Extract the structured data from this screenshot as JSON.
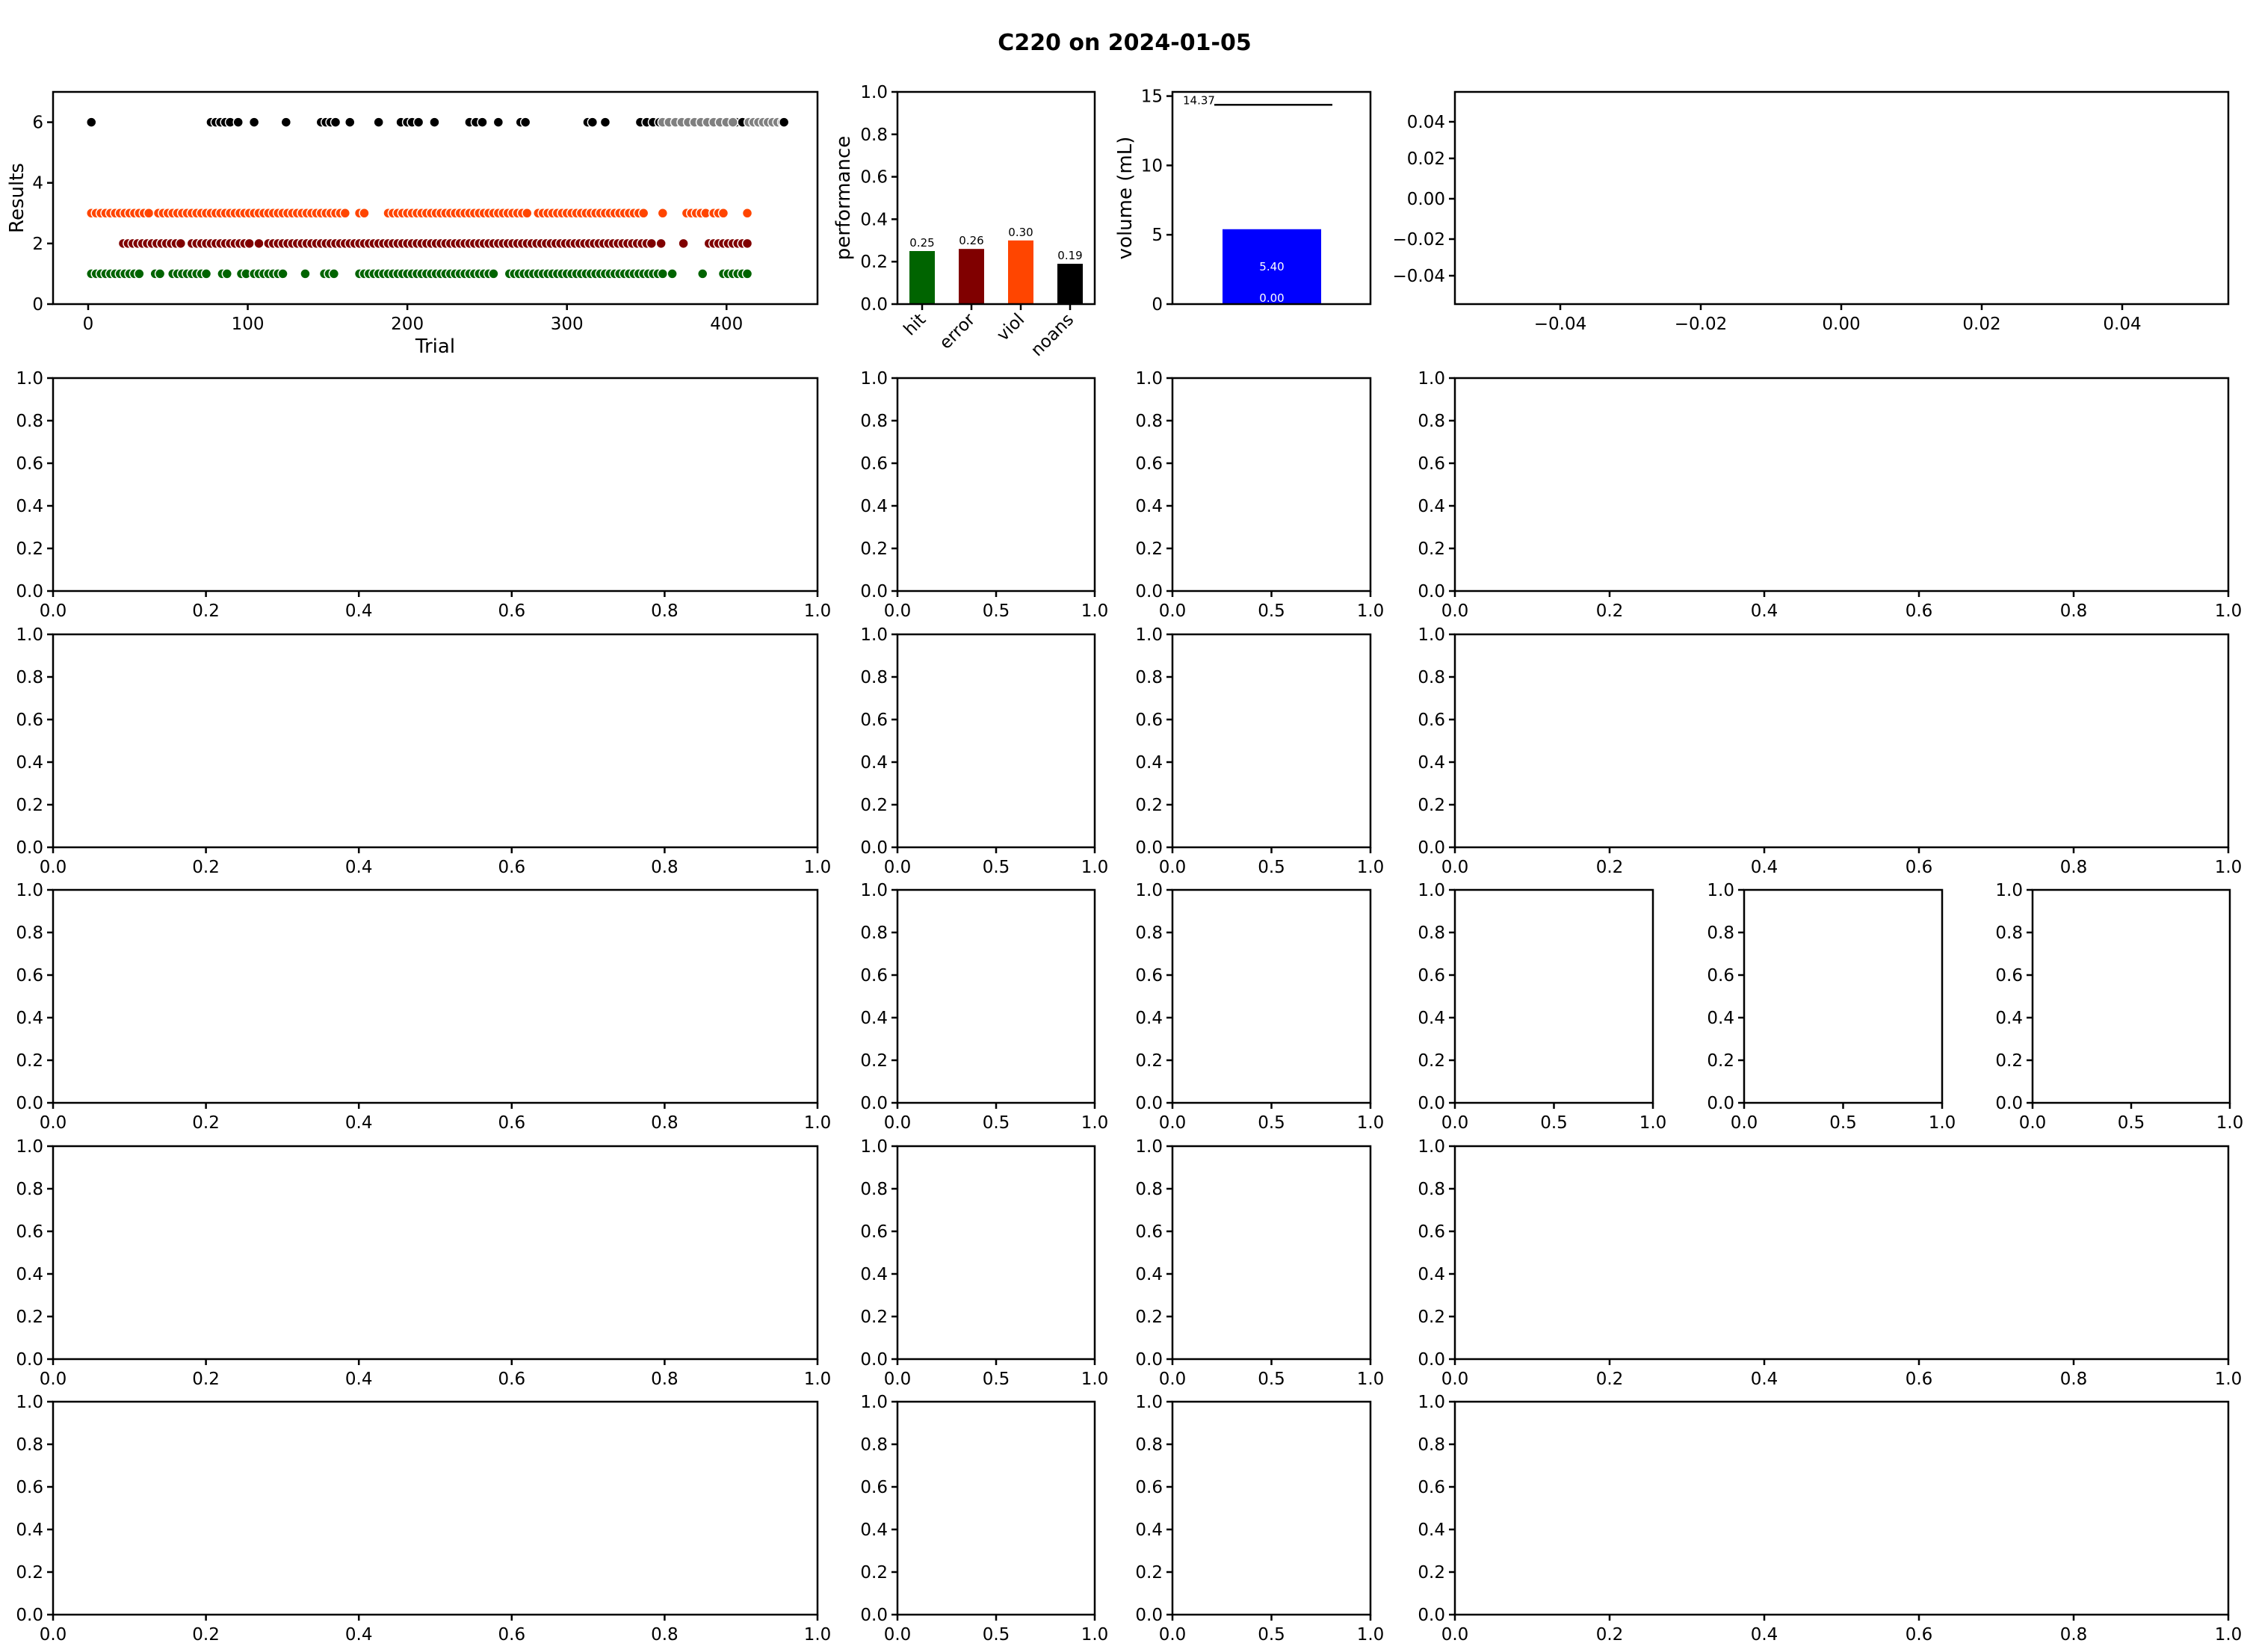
{
  "title": "C220 on 2024-01-05",
  "colors": {
    "hit": "#006400",
    "error": "#800000",
    "viol": "#ff4500",
    "noans": "#000000",
    "noans_gray": "#808080",
    "volume_bar": "#0000ff"
  },
  "chart_data": [
    {
      "id": "results",
      "type": "scatter",
      "xlabel": "Trial",
      "ylabel": "Results",
      "xlim": [
        -22,
        457
      ],
      "ylim": [
        0,
        7
      ],
      "xticks": [
        0,
        100,
        200,
        300,
        400
      ],
      "yticks": [
        0,
        2,
        4,
        6
      ],
      "grid": false,
      "series": [
        {
          "y": 6,
          "color": "#000000",
          "x": [
            2,
            77,
            80,
            83,
            86,
            89,
            94,
            104,
            124,
            146,
            149,
            152,
            155,
            164,
            182,
            196,
            200,
            203,
            207,
            217,
            239,
            243,
            247,
            257,
            271,
            274,
            313,
            316,
            324,
            346,
            350,
            354,
            358,
            362,
            366,
            370,
            374,
            378,
            382,
            386,
            390,
            394,
            398,
            402,
            406,
            410
          ]
        },
        {
          "y": 6,
          "color": "#808080",
          "x": [
            360,
            364,
            368,
            372,
            376,
            380,
            384,
            388,
            392,
            396,
            400,
            404,
            414,
            417,
            420,
            423,
            426,
            429,
            432,
            435
          ]
        },
        {
          "y": 6,
          "color": "#000000",
          "x": [
            436
          ]
        },
        {
          "y": 3,
          "color": "#ff4500",
          "x": [
            2,
            5,
            8,
            11,
            14,
            17,
            20,
            23,
            26,
            29,
            32,
            35,
            38,
            44,
            47,
            50,
            53,
            56,
            59,
            62,
            65,
            68,
            71,
            74,
            77,
            80,
            83,
            86,
            89,
            92,
            95,
            98,
            101,
            104,
            107,
            110,
            113,
            116,
            119,
            122,
            125,
            128,
            131,
            134,
            137,
            140,
            143,
            146,
            149,
            152,
            155,
            158,
            161,
            170,
            173,
            188,
            191,
            194,
            197,
            200,
            203,
            206,
            209,
            212,
            215,
            218,
            221,
            224,
            227,
            230,
            233,
            236,
            239,
            242,
            245,
            248,
            251,
            254,
            257,
            260,
            263,
            266,
            269,
            272,
            275,
            282,
            285,
            288,
            291,
            294,
            297,
            300,
            303,
            306,
            309,
            312,
            315,
            318,
            321,
            324,
            327,
            330,
            333,
            336,
            339,
            342,
            345,
            348,
            360,
            375,
            378,
            381,
            384,
            387,
            392,
            395,
            398,
            413
          ]
        },
        {
          "y": 2,
          "color": "#800000",
          "x": [
            22,
            25,
            28,
            31,
            34,
            37,
            40,
            43,
            46,
            49,
            52,
            55,
            58,
            65,
            68,
            71,
            74,
            77,
            80,
            83,
            86,
            89,
            92,
            95,
            98,
            101,
            107,
            113,
            116,
            119,
            122,
            125,
            128,
            131,
            134,
            137,
            140,
            143,
            146,
            149,
            152,
            155,
            158,
            161,
            164,
            167,
            170,
            173,
            176,
            179,
            182,
            185,
            188,
            191,
            194,
            197,
            200,
            203,
            206,
            209,
            212,
            215,
            218,
            221,
            224,
            227,
            230,
            233,
            236,
            239,
            242,
            245,
            248,
            251,
            254,
            257,
            260,
            263,
            266,
            269,
            272,
            275,
            278,
            281,
            284,
            287,
            290,
            293,
            296,
            299,
            302,
            305,
            308,
            311,
            314,
            317,
            320,
            323,
            326,
            329,
            332,
            335,
            338,
            341,
            344,
            347,
            350,
            353,
            359,
            373,
            389,
            392,
            395,
            398,
            401,
            404,
            407,
            410,
            413
          ]
        },
        {
          "y": 1,
          "color": "#006400",
          "x": [
            2,
            5,
            8,
            11,
            14,
            17,
            20,
            23,
            26,
            29,
            32,
            42,
            45,
            53,
            56,
            59,
            62,
            65,
            68,
            71,
            74,
            84,
            87,
            96,
            99,
            104,
            107,
            110,
            113,
            116,
            119,
            122,
            136,
            148,
            151,
            154,
            170,
            173,
            176,
            179,
            182,
            185,
            188,
            191,
            194,
            197,
            200,
            203,
            206,
            209,
            212,
            215,
            218,
            221,
            224,
            227,
            230,
            233,
            236,
            239,
            242,
            245,
            248,
            251,
            254,
            264,
            267,
            270,
            273,
            276,
            279,
            282,
            285,
            288,
            291,
            294,
            297,
            300,
            303,
            306,
            309,
            312,
            315,
            318,
            321,
            324,
            327,
            330,
            333,
            336,
            339,
            342,
            345,
            348,
            351,
            354,
            357,
            360,
            366,
            385,
            398,
            401,
            404,
            407,
            410,
            413
          ]
        }
      ]
    },
    {
      "id": "performance",
      "type": "bar",
      "ylabel": "performance",
      "categories": [
        "hit",
        "error",
        "viol",
        "noans"
      ],
      "values": [
        0.25,
        0.26,
        0.3,
        0.19
      ],
      "labels": [
        "0.25",
        "0.26",
        "0.30",
        "0.19"
      ],
      "colors": [
        "#006400",
        "#800000",
        "#ff4500",
        "#000000"
      ],
      "ylim": [
        0,
        1.0
      ],
      "yticks": [
        "0.0",
        "0.2",
        "0.4",
        "0.6",
        "0.8",
        "1.0"
      ]
    },
    {
      "id": "volume",
      "type": "bar",
      "ylabel": "volume (mL)",
      "values": [
        5.4
      ],
      "bar_label": "5.40",
      "zero_label": "0.00",
      "reference": 14.37,
      "reference_label": "14.37",
      "ylim": [
        0,
        15.3
      ],
      "yticks": [
        "0",
        "5",
        "10",
        "15"
      ]
    },
    {
      "id": "empty-top-right",
      "type": "scatter",
      "xticks": [
        "−0.04",
        "−0.02",
        "0.00",
        "0.02",
        "0.04"
      ],
      "yticks": [
        "−0.04",
        "−0.02",
        "0.00",
        "0.02",
        "0.04"
      ]
    }
  ],
  "empty_axes": {
    "ticks_01": [
      "0.0",
      "0.2",
      "0.4",
      "0.6",
      "0.8",
      "1.0"
    ],
    "ticks_half": [
      "0.0",
      "0.5",
      "1.0"
    ]
  }
}
